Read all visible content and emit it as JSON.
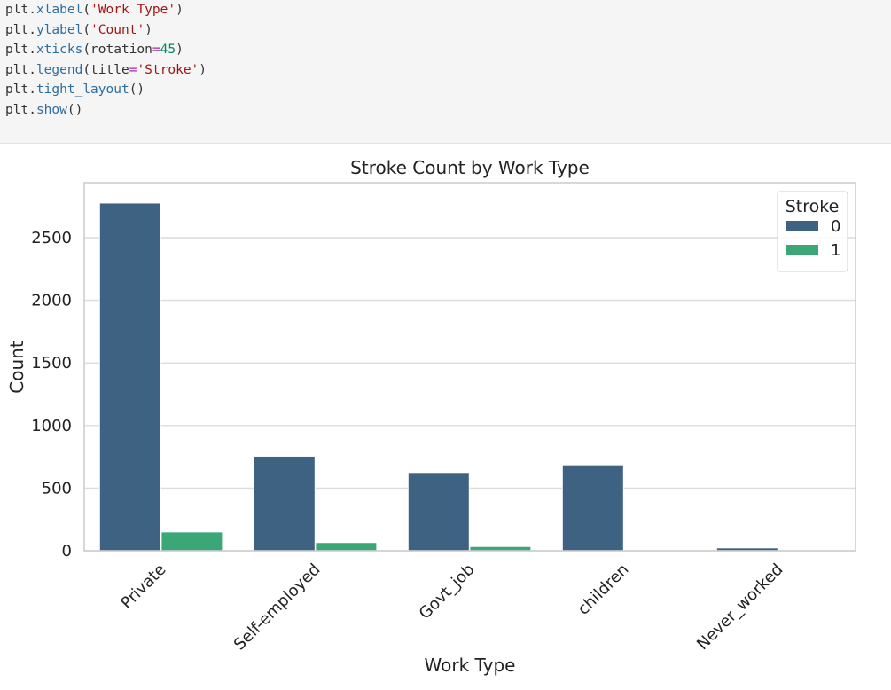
{
  "code_cell": {
    "lines": [
      {
        "mod": "plt",
        "fn": "xlabel",
        "open": "(",
        "str": "'Work Type'",
        "close": ")"
      },
      {
        "mod": "plt",
        "fn": "ylabel",
        "open": "(",
        "str": "'Count'",
        "close": ")"
      },
      {
        "mod": "plt",
        "fn": "xticks",
        "open": "(rotation",
        "eq": "=",
        "num": "45",
        "close": ")"
      },
      {
        "mod": "plt",
        "fn": "legend",
        "open": "(title",
        "eq": "=",
        "str": "'Stroke'",
        "close": ")"
      },
      {
        "mod": "plt",
        "fn": "tight_layout",
        "open": "()",
        "close": ""
      },
      {
        "mod": "plt",
        "fn": "show",
        "open": "()",
        "close": ""
      }
    ]
  },
  "chart_data": {
    "type": "bar",
    "title": "Stroke Count by Work Type",
    "xlabel": "Work Type",
    "ylabel": "Count",
    "categories": [
      "Private",
      "Self-employed",
      "Govt_job",
      "children",
      "Never_worked"
    ],
    "series": [
      {
        "name": "0",
        "color": "#3e6282",
        "values": [
          2776,
          754,
          624,
          685,
          22
        ]
      },
      {
        "name": "1",
        "color": "#3ba776",
        "values": [
          149,
          65,
          33,
          2,
          0
        ]
      }
    ],
    "yticks": [
      0,
      500,
      1000,
      1500,
      2000,
      2500
    ],
    "ylim": [
      0,
      2925
    ],
    "grid": true,
    "legend": {
      "title": "Stroke",
      "placement": "top-right"
    }
  }
}
